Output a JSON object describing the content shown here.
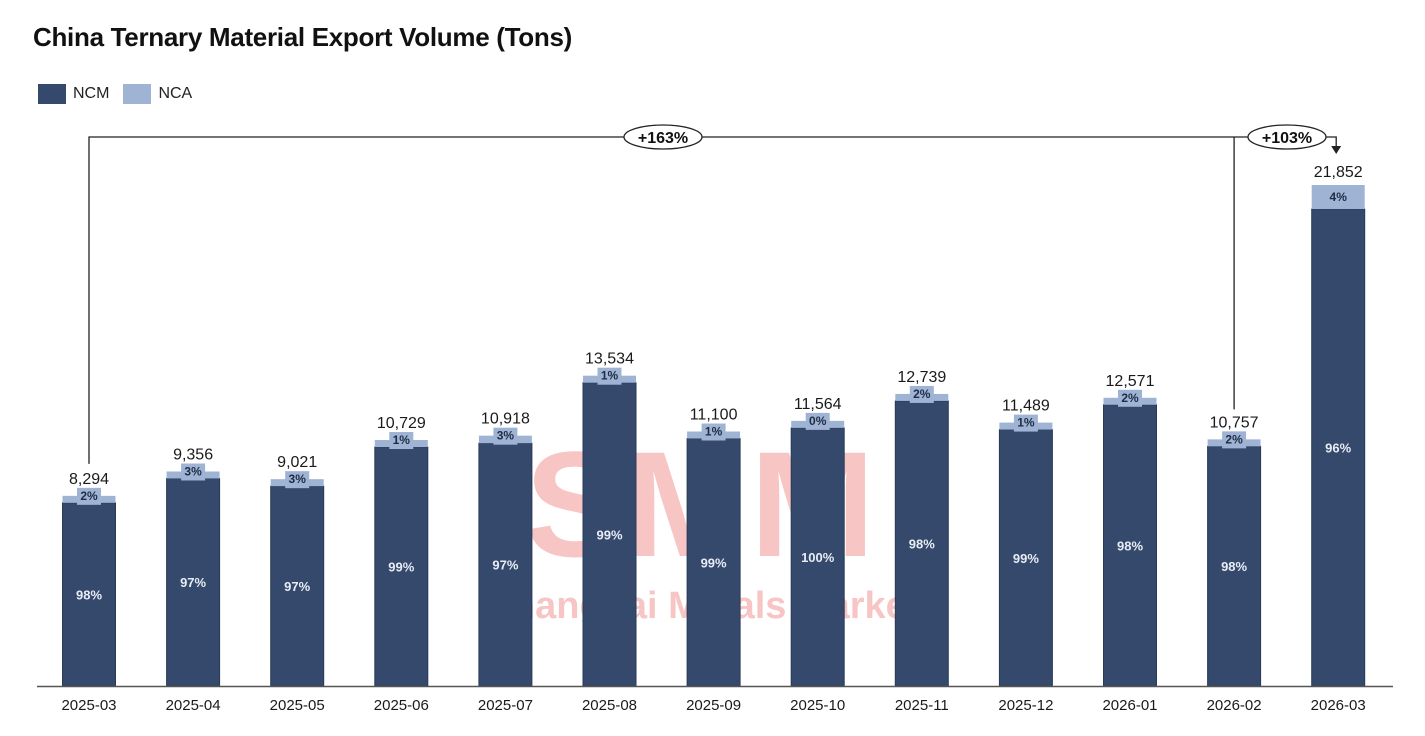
{
  "chart_data": {
    "type": "bar",
    "stacked": true,
    "title": "China Ternary Material Export Volume (Tons)",
    "xlabel": "",
    "ylabel": "",
    "ylim": [
      0,
      21852
    ],
    "grid": false,
    "legend_position": "top-left",
    "legend": [
      {
        "name": "NCM",
        "color": "#34496b"
      },
      {
        "name": "NCA",
        "color": "#9fb3d4"
      }
    ],
    "categories": [
      "2025-03",
      "2025-04",
      "2025-05",
      "2025-06",
      "2025-07",
      "2025-08",
      "2025-09",
      "2025-10",
      "2025-11",
      "2025-12",
      "2026-01",
      "2026-02",
      "2026-03"
    ],
    "totals": [
      8294,
      9356,
      9021,
      10729,
      10918,
      13534,
      11100,
      11564,
      12739,
      11489,
      12571,
      10757,
      21852
    ],
    "total_labels": [
      "8,294",
      "9,356",
      "9,021",
      "10,729",
      "10,918",
      "13,534",
      "11,100",
      "11,564",
      "12,739",
      "11,489",
      "12,571",
      "10,757",
      "21,852"
    ],
    "series": [
      {
        "name": "NCM",
        "share_percent": [
          98,
          97,
          97,
          99,
          97,
          99,
          99,
          100,
          98,
          99,
          98,
          98,
          96
        ],
        "share_labels": [
          "98%",
          "97%",
          "97%",
          "99%",
          "97%",
          "99%",
          "99%",
          "100%",
          "98%",
          "99%",
          "98%",
          "98%",
          "96%"
        ]
      },
      {
        "name": "NCA",
        "share_percent": [
          2,
          3,
          3,
          1,
          3,
          1,
          1,
          0,
          2,
          1,
          2,
          2,
          4
        ],
        "share_labels": [
          "2%",
          "3%",
          "3%",
          "1%",
          "3%",
          "1%",
          "1%",
          "0%",
          "2%",
          "1%",
          "2%",
          "2%",
          "4%"
        ]
      }
    ],
    "annotations": [
      {
        "text": "+163%",
        "from": "2025-03",
        "to": "2026-03"
      },
      {
        "text": "+103%",
        "from": "2026-02",
        "to": "2026-03"
      }
    ],
    "watermark": {
      "logo": "SMM",
      "text": "Shanghai Metals Market"
    }
  }
}
